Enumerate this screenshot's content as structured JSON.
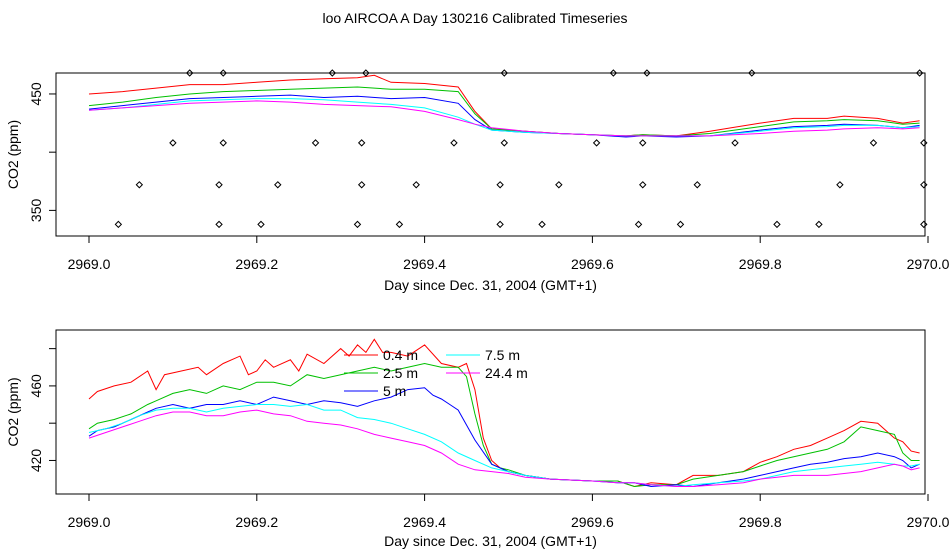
{
  "figure": {
    "title": "loo AIRCOA A  Day 130216  Calibrated Timeseries"
  },
  "colors": {
    "0.4 m": "#ff0000",
    "2.5 m": "#00c000",
    "5 m": "#0000ff",
    "7.5 m": "#00ffff",
    "24.4 m": "#ff00ff",
    "axes": "#000000"
  },
  "chart_data": [
    {
      "type": "line",
      "title": "",
      "xlabel": "Day since Dec. 31, 2004 (GMT+1)",
      "ylabel": "CO2 (ppm)",
      "xlim": [
        2969.0,
        2970.0
      ],
      "ylim": [
        328,
        468
      ],
      "xticks": [
        2969.0,
        2969.2,
        2969.4,
        2969.6,
        2969.8,
        2970.0
      ],
      "xtick_labels": [
        "2969.0",
        "2969.2",
        "2969.4",
        "2969.6",
        "2969.8",
        "2970.0"
      ],
      "yticks": [
        350,
        400,
        450
      ],
      "ytick_labels": [
        "350",
        "",
        "450"
      ],
      "legend": false,
      "series": [
        {
          "color_key": "0.4 m",
          "x": [
            2969.0,
            2969.04,
            2969.08,
            2969.12,
            2969.16,
            2969.2,
            2969.24,
            2969.28,
            2969.32,
            2969.34,
            2969.36,
            2969.4,
            2969.44,
            2969.46,
            2969.48,
            2969.52,
            2969.56,
            2969.6,
            2969.64,
            2969.66,
            2969.7,
            2969.74,
            2969.8,
            2969.84,
            2969.88,
            2969.9,
            2969.94,
            2969.97,
            2969.99
          ],
          "y": [
            450,
            452,
            455,
            458,
            458,
            460,
            462,
            463,
            464,
            466,
            460,
            459,
            456,
            435,
            420,
            418,
            416,
            415,
            414,
            415,
            414,
            418,
            425,
            429,
            429,
            431,
            429,
            425,
            427
          ]
        },
        {
          "color_key": "2.5 m",
          "x": [
            2969.0,
            2969.04,
            2969.08,
            2969.12,
            2969.16,
            2969.2,
            2969.24,
            2969.28,
            2969.32,
            2969.36,
            2969.4,
            2969.44,
            2969.46,
            2969.48,
            2969.52,
            2969.56,
            2969.6,
            2969.64,
            2969.66,
            2969.7,
            2969.74,
            2969.8,
            2969.84,
            2969.88,
            2969.9,
            2969.94,
            2969.97,
            2969.99
          ],
          "y": [
            440,
            443,
            447,
            450,
            452,
            453,
            454,
            455,
            456,
            454,
            454,
            452,
            433,
            420,
            418,
            416,
            415,
            414,
            415,
            414,
            416,
            422,
            426,
            427,
            428,
            427,
            424,
            425
          ]
        },
        {
          "color_key": "5 m",
          "x": [
            2969.0,
            2969.04,
            2969.08,
            2969.12,
            2969.16,
            2969.2,
            2969.24,
            2969.28,
            2969.32,
            2969.36,
            2969.4,
            2969.44,
            2969.46,
            2969.48,
            2969.52,
            2969.56,
            2969.6,
            2969.64,
            2969.66,
            2969.7,
            2969.74,
            2969.8,
            2969.84,
            2969.88,
            2969.9,
            2969.94,
            2969.97,
            2969.99
          ],
          "y": [
            437,
            440,
            443,
            446,
            447,
            448,
            449,
            447,
            448,
            446,
            447,
            442,
            428,
            419,
            417,
            416,
            415,
            413,
            414,
            413,
            414,
            419,
            422,
            423,
            424,
            423,
            421,
            423
          ]
        },
        {
          "color_key": "7.5 m",
          "x": [
            2969.0,
            2969.04,
            2969.08,
            2969.12,
            2969.16,
            2969.2,
            2969.24,
            2969.28,
            2969.32,
            2969.36,
            2969.4,
            2969.44,
            2969.46,
            2969.48,
            2969.52,
            2969.56,
            2969.6,
            2969.64,
            2969.66,
            2969.7,
            2969.74,
            2969.8,
            2969.84,
            2969.88,
            2969.9,
            2969.94,
            2969.97,
            2969.99
          ],
          "y": [
            436,
            438,
            441,
            444,
            445,
            446,
            446,
            445,
            443,
            441,
            438,
            430,
            424,
            419,
            417,
            416,
            415,
            414,
            414,
            414,
            414,
            418,
            421,
            422,
            423,
            423,
            421,
            422
          ]
        },
        {
          "color_key": "24.4 m",
          "x": [
            2969.0,
            2969.04,
            2969.08,
            2969.12,
            2969.16,
            2969.2,
            2969.24,
            2969.28,
            2969.32,
            2969.36,
            2969.4,
            2969.44,
            2969.46,
            2969.48,
            2969.52,
            2969.56,
            2969.6,
            2969.64,
            2969.66,
            2969.7,
            2969.74,
            2969.8,
            2969.84,
            2969.88,
            2969.9,
            2969.94,
            2969.97,
            2969.99
          ],
          "y": [
            436,
            438,
            440,
            442,
            443,
            444,
            443,
            441,
            440,
            439,
            435,
            428,
            424,
            421,
            418,
            416,
            415,
            414,
            414,
            414,
            414,
            416,
            418,
            419,
            420,
            421,
            420,
            421
          ]
        }
      ],
      "markers": {
        "shape": "open-diamond",
        "x": [
          2969.035,
          2969.06,
          2969.1,
          2969.12,
          2969.155,
          2969.155,
          2969.16,
          2969.16,
          2969.205,
          2969.225,
          2969.27,
          2969.29,
          2969.32,
          2969.325,
          2969.325,
          2969.33,
          2969.37,
          2969.39,
          2969.435,
          2969.49,
          2969.49,
          2969.495,
          2969.495,
          2969.54,
          2969.56,
          2969.605,
          2969.625,
          2969.655,
          2969.66,
          2969.66,
          2969.665,
          2969.705,
          2969.725,
          2969.77,
          2969.79,
          2969.82,
          2969.87,
          2969.895,
          2969.935,
          2969.99,
          2969.995,
          2969.995,
          2969.995
        ],
        "y": [
          338,
          372,
          408,
          468,
          338,
          372,
          408,
          468,
          338,
          372,
          408,
          468,
          338,
          372,
          408,
          468,
          338,
          372,
          408,
          338,
          372,
          408,
          468,
          338,
          372,
          408,
          468,
          338,
          372,
          408,
          468,
          338,
          372,
          408,
          468,
          338,
          338,
          372,
          408,
          468,
          338,
          372,
          408
        ]
      }
    },
    {
      "type": "line",
      "title": "",
      "xlabel": "Day since Dec. 31, 2004 (GMT+1)",
      "ylabel": "CO2 (ppm)",
      "xlim": [
        2969.0,
        2970.0
      ],
      "ylim": [
        402,
        490
      ],
      "xticks": [
        2969.0,
        2969.2,
        2969.4,
        2969.6,
        2969.8,
        2970.0
      ],
      "xtick_labels": [
        "2969.0",
        "2969.2",
        "2969.4",
        "2969.6",
        "2969.8",
        "2970.0"
      ],
      "yticks": [
        420,
        440,
        460,
        480
      ],
      "ytick_labels": [
        "420",
        "",
        "460",
        ""
      ],
      "legend": true,
      "legend_entries": [
        "0.4 m",
        "2.5 m",
        "5 m",
        "7.5 m",
        "24.4 m"
      ],
      "series": [
        {
          "name": "0.4 m",
          "x": [
            2969.0,
            2969.01,
            2969.03,
            2969.05,
            2969.07,
            2969.08,
            2969.09,
            2969.11,
            2969.13,
            2969.14,
            2969.16,
            2969.18,
            2969.19,
            2969.2,
            2969.21,
            2969.22,
            2969.24,
            2969.25,
            2969.26,
            2969.28,
            2969.3,
            2969.31,
            2969.32,
            2969.33,
            2969.34,
            2969.35,
            2969.36,
            2969.38,
            2969.4,
            2969.42,
            2969.44,
            2969.45,
            2969.46,
            2969.47,
            2969.48,
            2969.49,
            2969.5,
            2969.52,
            2969.55,
            2969.6,
            2969.63,
            2969.65,
            2969.67,
            2969.7,
            2969.72,
            2969.75,
            2969.78,
            2969.8,
            2969.82,
            2969.84,
            2969.86,
            2969.88,
            2969.9,
            2969.92,
            2969.94,
            2969.96,
            2969.97,
            2969.98,
            2969.99
          ],
          "y": [
            453,
            457,
            460,
            462,
            468,
            458,
            466,
            468,
            470,
            466,
            472,
            476,
            466,
            468,
            474,
            470,
            474,
            468,
            477,
            472,
            480,
            476,
            482,
            478,
            485,
            478,
            478,
            476,
            482,
            472,
            470,
            472,
            458,
            432,
            420,
            416,
            414,
            412,
            410,
            409,
            409,
            406,
            408,
            407,
            412,
            412,
            414,
            419,
            422,
            426,
            428,
            432,
            436,
            441,
            440,
            432,
            430,
            425,
            424
          ]
        },
        {
          "name": "2.5 m",
          "x": [
            2969.0,
            2969.01,
            2969.03,
            2969.05,
            2969.07,
            2969.08,
            2969.1,
            2969.12,
            2969.14,
            2969.16,
            2969.18,
            2969.2,
            2969.22,
            2969.24,
            2969.26,
            2969.28,
            2969.3,
            2969.32,
            2969.34,
            2969.36,
            2969.38,
            2969.4,
            2969.42,
            2969.44,
            2969.45,
            2969.46,
            2969.47,
            2969.48,
            2969.49,
            2969.5,
            2969.52,
            2969.55,
            2969.6,
            2969.63,
            2969.65,
            2969.67,
            2969.7,
            2969.72,
            2969.75,
            2969.78,
            2969.8,
            2969.82,
            2969.84,
            2969.86,
            2969.88,
            2969.9,
            2969.92,
            2969.94,
            2969.96,
            2969.97,
            2969.98,
            2969.99
          ],
          "y": [
            437,
            440,
            442,
            445,
            450,
            452,
            456,
            458,
            456,
            460,
            458,
            462,
            462,
            460,
            466,
            464,
            466,
            468,
            470,
            468,
            470,
            472,
            470,
            470,
            465,
            445,
            428,
            418,
            416,
            415,
            412,
            410,
            409,
            409,
            406,
            407,
            407,
            410,
            412,
            414,
            417,
            420,
            422,
            424,
            426,
            430,
            438,
            436,
            434,
            424,
            420,
            420
          ]
        },
        {
          "name": "5 m",
          "x": [
            2969.0,
            2969.01,
            2969.03,
            2969.05,
            2969.07,
            2969.08,
            2969.1,
            2969.12,
            2969.14,
            2969.16,
            2969.18,
            2969.2,
            2969.22,
            2969.24,
            2969.26,
            2969.28,
            2969.3,
            2969.32,
            2969.34,
            2969.36,
            2969.38,
            2969.4,
            2969.41,
            2969.42,
            2969.43,
            2969.44,
            2969.46,
            2969.48,
            2969.5,
            2969.52,
            2969.55,
            2969.6,
            2969.63,
            2969.65,
            2969.67,
            2969.7,
            2969.72,
            2969.75,
            2969.78,
            2969.8,
            2969.82,
            2969.84,
            2969.86,
            2969.88,
            2969.9,
            2969.92,
            2969.94,
            2969.96,
            2969.97,
            2969.98,
            2969.99
          ],
          "y": [
            433,
            436,
            438,
            442,
            446,
            448,
            450,
            448,
            450,
            450,
            452,
            450,
            454,
            452,
            450,
            452,
            451,
            449,
            452,
            454,
            458,
            459,
            455,
            453,
            450,
            447,
            431,
            418,
            414,
            412,
            410,
            409,
            408,
            408,
            406,
            407,
            406,
            408,
            410,
            412,
            414,
            416,
            418,
            419,
            421,
            422,
            424,
            422,
            420,
            416,
            418
          ]
        },
        {
          "name": "7.5 m",
          "x": [
            2969.0,
            2969.02,
            2969.04,
            2969.06,
            2969.08,
            2969.1,
            2969.12,
            2969.14,
            2969.16,
            2969.18,
            2969.2,
            2969.22,
            2969.24,
            2969.26,
            2969.28,
            2969.3,
            2969.32,
            2969.34,
            2969.36,
            2969.38,
            2969.4,
            2969.42,
            2969.44,
            2969.46,
            2969.48,
            2969.5,
            2969.52,
            2969.55,
            2969.6,
            2969.63,
            2969.65,
            2969.67,
            2969.7,
            2969.72,
            2969.75,
            2969.78,
            2969.8,
            2969.82,
            2969.84,
            2969.86,
            2969.88,
            2969.9,
            2969.92,
            2969.94,
            2969.96,
            2969.97,
            2969.98,
            2969.99
          ],
          "y": [
            435,
            437,
            440,
            444,
            447,
            448,
            448,
            446,
            448,
            449,
            450,
            450,
            449,
            450,
            447,
            447,
            443,
            442,
            440,
            437,
            434,
            430,
            424,
            420,
            416,
            414,
            412,
            410,
            409,
            408,
            408,
            407,
            406,
            407,
            408,
            409,
            410,
            412,
            414,
            415,
            416,
            417,
            418,
            419,
            418,
            417,
            417,
            418
          ]
        },
        {
          "name": "24.4 m",
          "x": [
            2969.0,
            2969.02,
            2969.04,
            2969.06,
            2969.08,
            2969.1,
            2969.12,
            2969.14,
            2969.16,
            2969.18,
            2969.2,
            2969.22,
            2969.24,
            2969.26,
            2969.28,
            2969.3,
            2969.32,
            2969.34,
            2969.36,
            2969.38,
            2969.4,
            2969.42,
            2969.44,
            2969.46,
            2969.48,
            2969.5,
            2969.52,
            2969.55,
            2969.6,
            2969.63,
            2969.65,
            2969.67,
            2969.7,
            2969.72,
            2969.75,
            2969.78,
            2969.8,
            2969.82,
            2969.84,
            2969.86,
            2969.88,
            2969.9,
            2969.92,
            2969.94,
            2969.96,
            2969.97,
            2969.98,
            2969.99
          ],
          "y": [
            432,
            435,
            438,
            441,
            444,
            446,
            446,
            444,
            444,
            446,
            447,
            445,
            444,
            441,
            440,
            439,
            437,
            434,
            432,
            430,
            428,
            424,
            418,
            415,
            414,
            413,
            411,
            410,
            409,
            408,
            408,
            407,
            406,
            406,
            407,
            408,
            410,
            411,
            412,
            412,
            412,
            413,
            414,
            416,
            418,
            417,
            415,
            416
          ]
        }
      ]
    }
  ]
}
